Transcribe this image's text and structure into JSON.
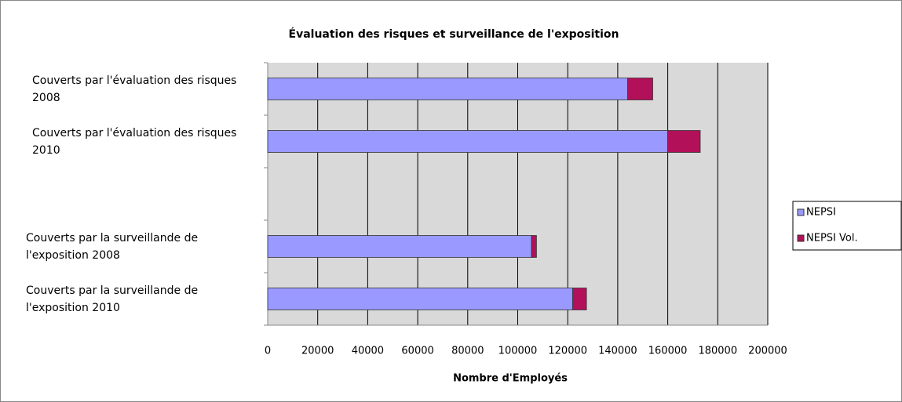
{
  "chart_data": {
    "type": "bar",
    "orientation": "horizontal",
    "stacked": true,
    "title": "Évaluation des risques et surveillance de l'exposition",
    "x_label": "Nombre d'Employés",
    "categories": [
      "Couverts par l'évaluation des risques 2008",
      "Couverts par l'évaluation des risques 2010",
      null,
      "Couverts par la surveillande de l'exposition 2008",
      "Couverts par la surveillande de l'exposition 2010"
    ],
    "series": [
      {
        "name": "NEPSI",
        "color": "#9999ff",
        "values": [
          144000,
          160000,
          null,
          105500,
          122000
        ]
      },
      {
        "name": "NEPSI Vol.",
        "color": "#b3105a",
        "values": [
          10000,
          13000,
          null,
          2000,
          5500
        ]
      }
    ],
    "xlim": [
      0,
      200000
    ],
    "xticks": [
      0,
      20000,
      40000,
      60000,
      80000,
      100000,
      120000,
      140000,
      160000,
      180000,
      200000
    ],
    "grid": true,
    "legend": "right"
  }
}
